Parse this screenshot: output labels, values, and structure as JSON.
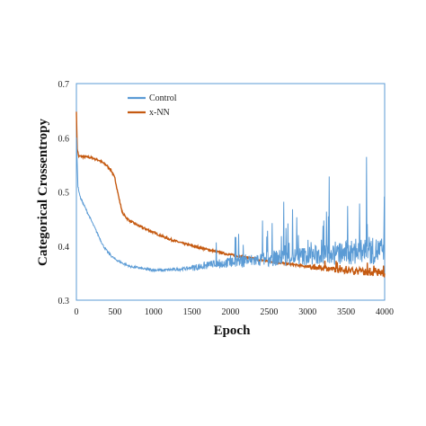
{
  "chart_data": {
    "type": "line",
    "xlabel": "Epoch",
    "ylabel": "Categorical Crossentropy",
    "xlim": [
      0,
      4000
    ],
    "ylim": [
      0.3,
      0.7
    ],
    "xticks": [
      "0",
      "500",
      "1000",
      "1500",
      "2000",
      "2500",
      "3000",
      "3500",
      "4000"
    ],
    "yticks": [
      "0.3",
      "0.4",
      "0.5",
      "0.6",
      "0.7"
    ],
    "grid": false,
    "legend_position": "top-left",
    "series": [
      {
        "name": "Control",
        "color": "#5b9bd5",
        "x": [
          0,
          20,
          50,
          100,
          150,
          200,
          250,
          300,
          350,
          400,
          450,
          500,
          550,
          600,
          650,
          700,
          800,
          900,
          1000,
          1100,
          1200,
          1300,
          1400,
          1500,
          1600,
          1700,
          1800,
          1900,
          2000,
          2200,
          2400,
          2600,
          2800,
          3000,
          3200,
          3400,
          3600,
          3800,
          4000
        ],
        "values": [
          0.6,
          0.51,
          0.49,
          0.475,
          0.46,
          0.445,
          0.43,
          0.415,
          0.4,
          0.39,
          0.382,
          0.376,
          0.372,
          0.368,
          0.365,
          0.362,
          0.36,
          0.357,
          0.356,
          0.355,
          0.356,
          0.357,
          0.358,
          0.36,
          0.362,
          0.364,
          0.366,
          0.368,
          0.37,
          0.372,
          0.375,
          0.378,
          0.38,
          0.382,
          0.384,
          0.386,
          0.388,
          0.39,
          0.392
        ]
      },
      {
        "name": "x-NN",
        "color": "#c55a11",
        "x": [
          0,
          10,
          30,
          100,
          200,
          300,
          400,
          450,
          500,
          550,
          600,
          650,
          700,
          800,
          1000,
          1200,
          1400,
          1600,
          1800,
          2000,
          2200,
          2400,
          2600,
          2800,
          3000,
          3200,
          3400,
          3600,
          3800,
          4000
        ],
        "values": [
          0.65,
          0.58,
          0.566,
          0.565,
          0.563,
          0.558,
          0.548,
          0.54,
          0.525,
          0.49,
          0.46,
          0.452,
          0.446,
          0.438,
          0.425,
          0.413,
          0.404,
          0.397,
          0.39,
          0.384,
          0.379,
          0.374,
          0.37,
          0.366,
          0.362,
          0.359,
          0.356,
          0.354,
          0.352,
          0.35
        ]
      }
    ]
  }
}
